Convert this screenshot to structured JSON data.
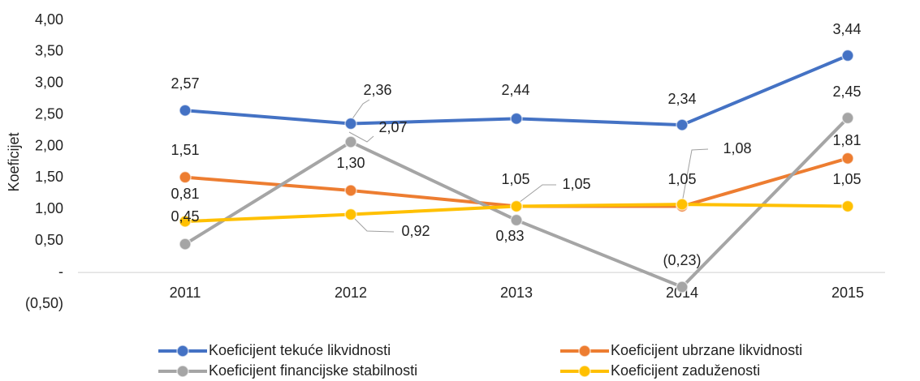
{
  "chart_data": {
    "type": "line",
    "y_label": "Koeficijet",
    "categories": [
      "2011",
      "2012",
      "2013",
      "2014",
      "2015"
    ],
    "ylim": [
      -0.5,
      4
    ],
    "yticks": [
      {
        "value": -0.5,
        "label": "(0,50)"
      },
      {
        "value": 0,
        "label": "-"
      },
      {
        "value": 0.5,
        "label": "0,50"
      },
      {
        "value": 1,
        "label": "1,00"
      },
      {
        "value": 1.5,
        "label": "1,50"
      },
      {
        "value": 2,
        "label": "2,00"
      },
      {
        "value": 2.5,
        "label": "2,50"
      },
      {
        "value": 3,
        "label": "3,00"
      },
      {
        "value": 3.5,
        "label": "3,50"
      },
      {
        "value": 4,
        "label": "4,00"
      }
    ],
    "legend": "bottom",
    "series": [
      {
        "name": "Koeficijent tekuće likvidnosti",
        "color": "#4472c4",
        "values": [
          2.57,
          2.36,
          2.44,
          2.34,
          3.44
        ],
        "value_labels": [
          "2,57",
          "2,36",
          "2,44",
          "2,34",
          "3,44"
        ]
      },
      {
        "name": "Koeficijent ubrzane likvidnosti",
        "color": "#ed7d31",
        "values": [
          1.51,
          1.3,
          1.05,
          1.05,
          1.81
        ],
        "value_labels": [
          "1,51",
          "1,30",
          "1,05",
          "1,05",
          "1,81"
        ]
      },
      {
        "name": "Koeficijent financijske stabilnosti",
        "color": "#a5a5a5",
        "values": [
          0.45,
          2.07,
          0.83,
          -0.23,
          2.45
        ],
        "value_labels": [
          "0,45",
          "2,07",
          "0,83",
          "(0,23)",
          "2,45"
        ]
      },
      {
        "name": "Koeficijent zaduženosti",
        "color": "#ffc000",
        "values": [
          0.81,
          0.92,
          1.05,
          1.08,
          1.05
        ],
        "value_labels": [
          "0,81",
          "0,92",
          "1,05",
          "1,08",
          "1,05"
        ]
      }
    ]
  }
}
